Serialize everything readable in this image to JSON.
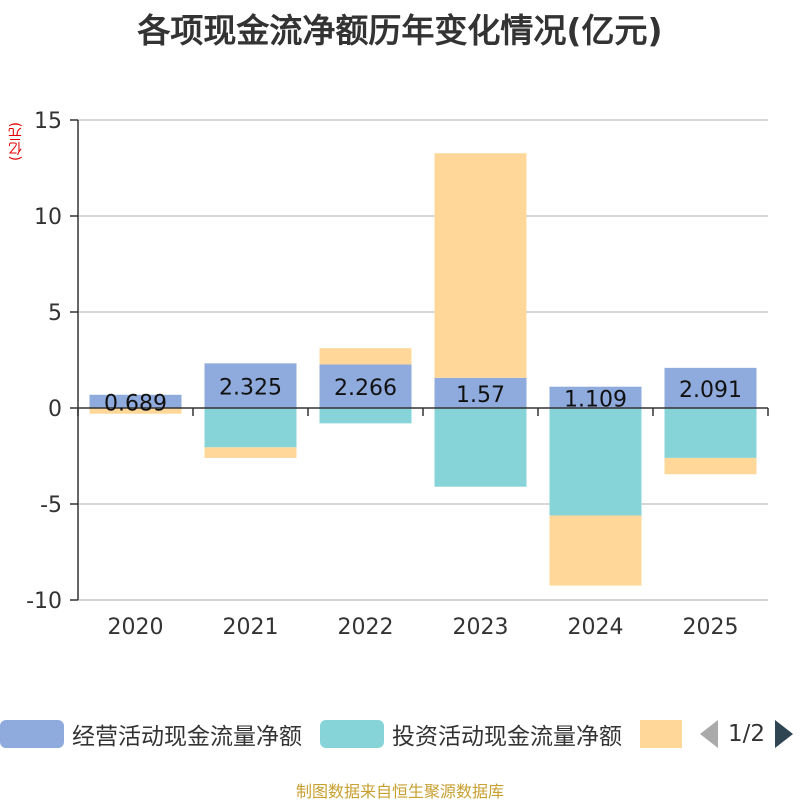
{
  "chart_data": {
    "type": "bar",
    "stacked": true,
    "title": "各项现金流净额历年变化情况(亿元)",
    "ylabel": "(亿元)",
    "categories": [
      "2020",
      "2021",
      "2022",
      "2023",
      "2024",
      "2025"
    ],
    "ylim": [
      -10,
      15
    ],
    "yticks": [
      15,
      10,
      5,
      0,
      -5,
      -10
    ],
    "series": [
      {
        "name": "经营活动现金流量净额",
        "color": "#8faadc",
        "values": [
          0.689,
          2.325,
          2.266,
          1.57,
          1.109,
          2.091
        ],
        "labels": [
          "0.689",
          "2.325",
          "2.266",
          "1.57",
          "1.109",
          "2.091"
        ]
      },
      {
        "name": "投资活动现金流量净额",
        "color": "#87d4d8",
        "values": [
          0.0,
          -2.05,
          -0.8,
          -4.1,
          -5.6,
          -2.6
        ]
      },
      {
        "name": "",
        "color": "#ffd899",
        "values": [
          -0.3,
          -0.55,
          0.85,
          11.7,
          -3.65,
          -0.85
        ]
      }
    ],
    "legend": {
      "position": "bottom",
      "page": "1/2"
    }
  },
  "source": "制图数据来自恒生聚源数据库"
}
